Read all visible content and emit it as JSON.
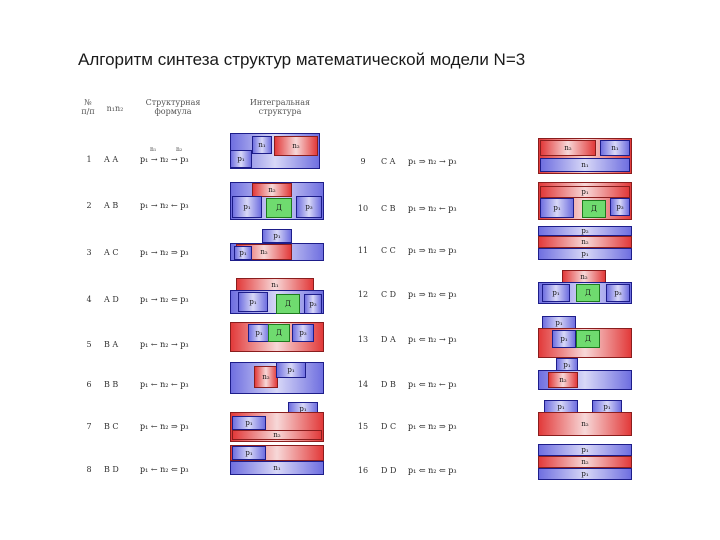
{
  "title": "Алгоритм синтеза структур математической модели N=3",
  "headers": {
    "num_line1": "№",
    "num_line2": "п/п",
    "code": "n₁n₂",
    "formula_line1": "Структурная",
    "formula_line2": "формула",
    "integral_line1": "Интегральная",
    "integral_line2": "структура"
  },
  "left_rows": [
    {
      "num": "1",
      "code": "A A",
      "formula": "p₁ → n₂ → p₃"
    },
    {
      "num": "2",
      "code": "A B",
      "formula": "p₁ → n₂ ← p₃"
    },
    {
      "num": "3",
      "code": "A C",
      "formula": "p₁ → n₂ ⇒ p₃"
    },
    {
      "num": "4",
      "code": "A D",
      "formula": "p₁ → n₂ ⇐ p₃"
    },
    {
      "num": "5",
      "code": "B A",
      "formula": "p₁ ← n₂ → p₃"
    },
    {
      "num": "6",
      "code": "B B",
      "formula": "p₁ ← n₂ ← p₃"
    },
    {
      "num": "7",
      "code": "B C",
      "formula": "p₁ ← n₂ ⇒ p₃"
    },
    {
      "num": "8",
      "code": "B D",
      "formula": "p₁ ← n₂ ⇐ p₃"
    }
  ],
  "right_rows": [
    {
      "num": "9",
      "code": "C A",
      "formula": "p₁ ⇒ n₂ → p₃"
    },
    {
      "num": "10",
      "code": "C B",
      "formula": "p₁ ⇒ n₂ ← p₃"
    },
    {
      "num": "11",
      "code": "C C",
      "formula": "p₁ ⇒ n₂ ⇒ p₃"
    },
    {
      "num": "12",
      "code": "C D",
      "formula": "p₁ ⇒ n₂ ⇐ p₃"
    },
    {
      "num": "13",
      "code": "D A",
      "formula": "p₁ ⇐ n₂ → p₃"
    },
    {
      "num": "14",
      "code": "D B",
      "formula": "p₁ ⇐ n₂ ← p₃"
    },
    {
      "num": "15",
      "code": "D C",
      "formula": "p₁ ⇐ n₂ ⇒ p₃"
    },
    {
      "num": "16",
      "code": "D D",
      "formula": "p₁ ⇐ n₂ ⇐ p₃"
    }
  ],
  "row1_annotations": {
    "a1": "n₁",
    "a2": "n₂"
  },
  "labels": {
    "p1": "p₁",
    "p2": "p₂",
    "p3": "p₃",
    "n1": "n₁",
    "n2": "n₂",
    "d": "Д"
  },
  "colors": {
    "blue": "#6f6fe0",
    "red": "#e23a3a",
    "green": "#6fdb6f",
    "border": "#1d1d8a"
  }
}
